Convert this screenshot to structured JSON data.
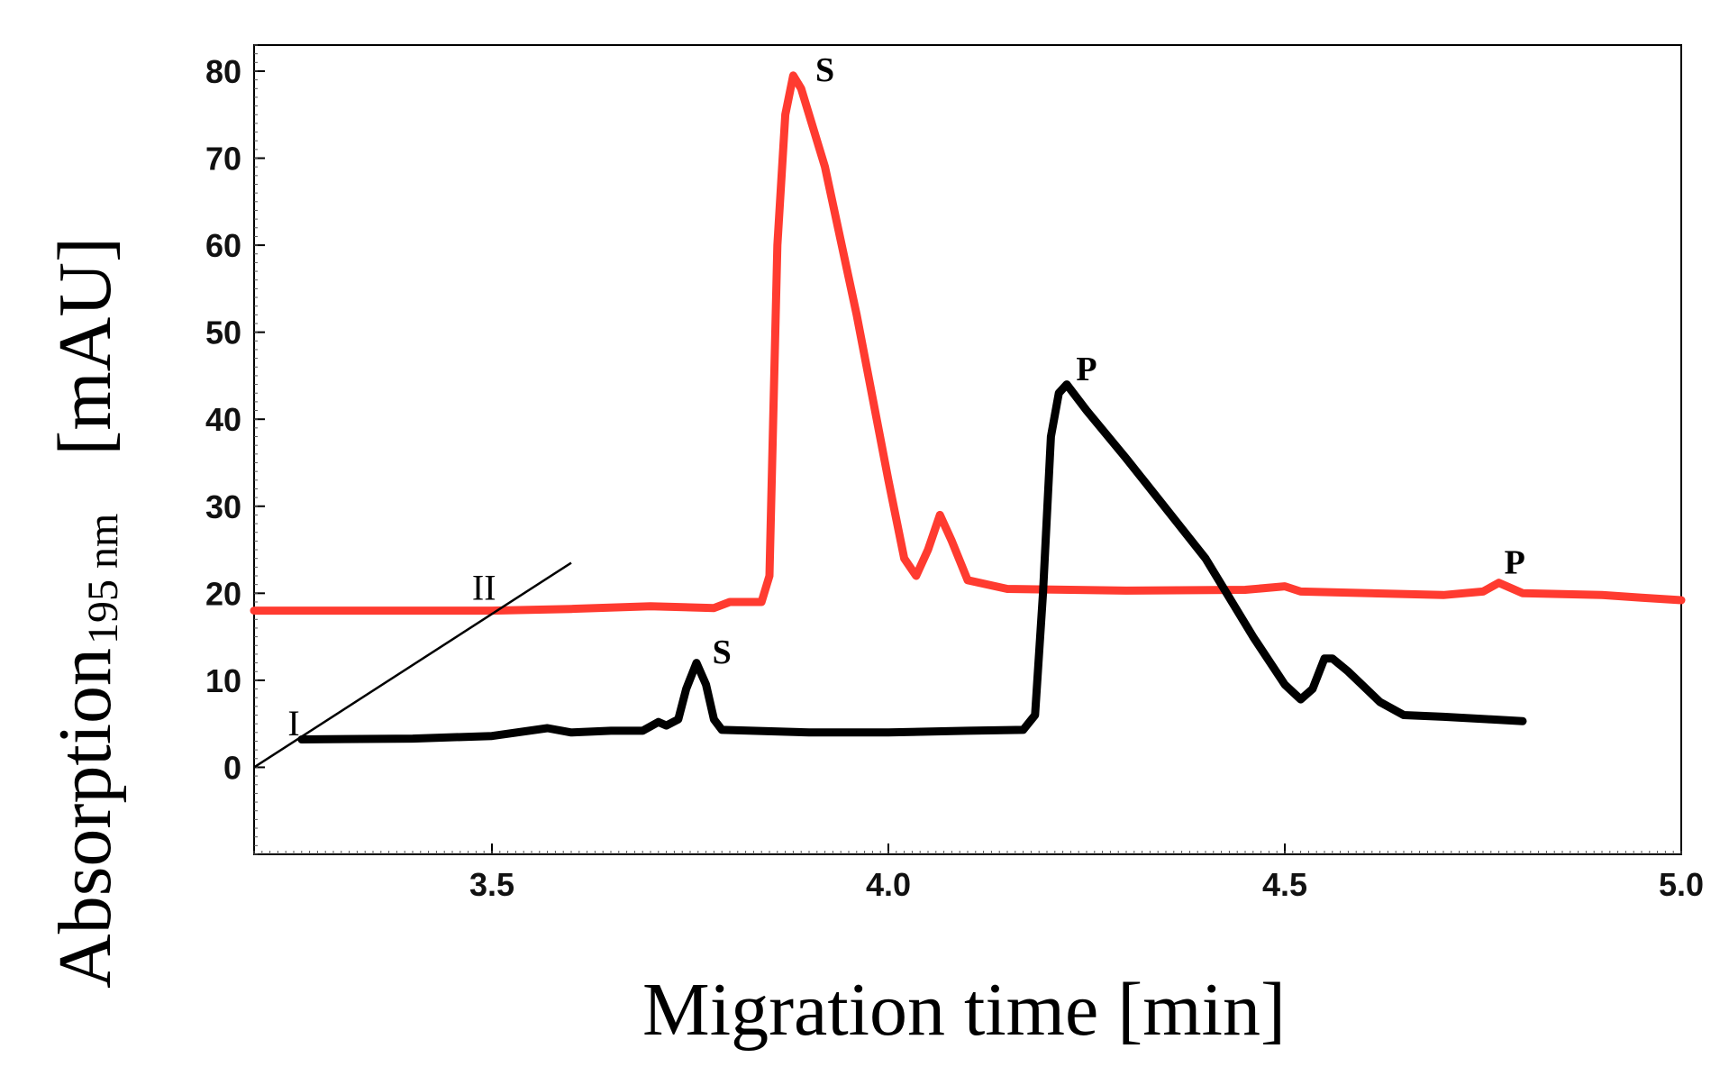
{
  "chart_data": {
    "type": "line",
    "title": "",
    "xlabel": "Migration time [min]",
    "ylabel_main": "Absorption",
    "ylabel_sub": "195 nm",
    "ylabel_unit": "[mAU]",
    "xlim": [
      3.2,
      5.0
    ],
    "ylim": [
      -10,
      83
    ],
    "x_ticks": [
      {
        "value": 3.5,
        "label": "3.5"
      },
      {
        "value": 4.0,
        "label": "4.0"
      },
      {
        "value": 4.5,
        "label": "4.5"
      },
      {
        "value": 5.0,
        "label": "5.0"
      }
    ],
    "y_ticks": [
      {
        "value": 0,
        "label": "0"
      },
      {
        "value": 10,
        "label": "10"
      },
      {
        "value": 20,
        "label": "20"
      },
      {
        "value": 30,
        "label": "30"
      },
      {
        "value": 40,
        "label": "40"
      },
      {
        "value": 50,
        "label": "50"
      },
      {
        "value": 60,
        "label": "60"
      },
      {
        "value": 70,
        "label": "70"
      },
      {
        "value": 80,
        "label": "80"
      }
    ],
    "grid": false,
    "series": [
      {
        "color": "#ff3b30",
        "points": [
          [
            3.2,
            18.0
          ],
          [
            3.5,
            18.0
          ],
          [
            3.6,
            18.2
          ],
          [
            3.7,
            18.5
          ],
          [
            3.78,
            18.3
          ],
          [
            3.8,
            19.0
          ],
          [
            3.84,
            19.0
          ],
          [
            3.85,
            22.0
          ],
          [
            3.86,
            60.0
          ],
          [
            3.87,
            75.0
          ],
          [
            3.88,
            79.5
          ],
          [
            3.89,
            78.0
          ],
          [
            3.92,
            69.0
          ],
          [
            3.96,
            52.0
          ],
          [
            4.0,
            33.0
          ],
          [
            4.02,
            24.0
          ],
          [
            4.035,
            22.0
          ],
          [
            4.05,
            25.0
          ],
          [
            4.065,
            29.0
          ],
          [
            4.08,
            26.0
          ],
          [
            4.1,
            21.5
          ],
          [
            4.15,
            20.5
          ],
          [
            4.3,
            20.3
          ],
          [
            4.45,
            20.4
          ],
          [
            4.5,
            20.8
          ],
          [
            4.52,
            20.2
          ],
          [
            4.7,
            19.8
          ],
          [
            4.75,
            20.2
          ],
          [
            4.77,
            21.2
          ],
          [
            4.8,
            20.0
          ],
          [
            4.9,
            19.8
          ],
          [
            4.95,
            19.5
          ],
          [
            5.0,
            19.2
          ]
        ]
      },
      {
        "color": "#000000",
        "points": [
          [
            3.26,
            3.2
          ],
          [
            3.4,
            3.3
          ],
          [
            3.5,
            3.6
          ],
          [
            3.57,
            4.5
          ],
          [
            3.6,
            4.0
          ],
          [
            3.65,
            4.2
          ],
          [
            3.69,
            4.2
          ],
          [
            3.71,
            5.2
          ],
          [
            3.72,
            4.8
          ],
          [
            3.735,
            5.5
          ],
          [
            3.745,
            9.0
          ],
          [
            3.758,
            12.0
          ],
          [
            3.77,
            9.5
          ],
          [
            3.78,
            5.5
          ],
          [
            3.79,
            4.3
          ],
          [
            3.9,
            4.0
          ],
          [
            4.0,
            4.0
          ],
          [
            4.1,
            4.2
          ],
          [
            4.17,
            4.3
          ],
          [
            4.185,
            6.0
          ],
          [
            4.195,
            20.0
          ],
          [
            4.205,
            38.0
          ],
          [
            4.215,
            43.0
          ],
          [
            4.225,
            44.0
          ],
          [
            4.25,
            41.0
          ],
          [
            4.3,
            35.5
          ],
          [
            4.4,
            24.0
          ],
          [
            4.46,
            15.0
          ],
          [
            4.5,
            9.5
          ],
          [
            4.52,
            7.8
          ],
          [
            4.535,
            9.0
          ],
          [
            4.55,
            12.5
          ],
          [
            4.56,
            12.5
          ],
          [
            4.58,
            11.0
          ],
          [
            4.62,
            7.5
          ],
          [
            4.65,
            6.0
          ],
          [
            4.7,
            5.8
          ],
          [
            4.76,
            5.5
          ],
          [
            4.8,
            5.3
          ]
        ]
      }
    ],
    "annotations": [
      {
        "text": "S",
        "x": 3.92,
        "y": 80.2
      },
      {
        "text": "P",
        "x": 4.25,
        "y": 45.8
      },
      {
        "text": "S",
        "x": 3.79,
        "y": 13.3
      },
      {
        "text": "P",
        "x": 4.79,
        "y": 23.6
      },
      {
        "text": "I",
        "x": 3.25,
        "y": 5.0
      },
      {
        "text": "II",
        "x": 3.49,
        "y": 20.6
      }
    ],
    "guide_line": {
      "x1": 3.2,
      "y1": 0.0,
      "x2": 3.6,
      "y2": 23.5
    }
  }
}
